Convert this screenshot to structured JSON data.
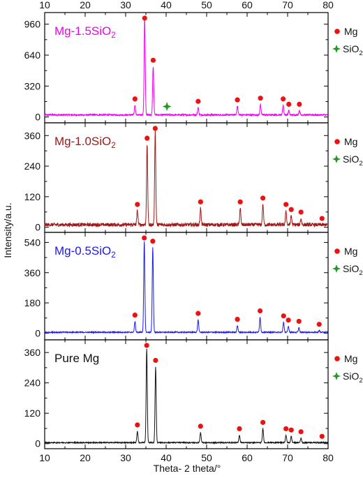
{
  "chart_data": {
    "type": "line",
    "xlabel": "Theta- 2 theta/°",
    "ylabel": "Intensity/a.u.",
    "xlim": [
      10,
      80
    ],
    "x_ticks": [
      "10",
      "20",
      "30",
      "40",
      "50",
      "60",
      "70",
      "80"
    ],
    "grid": false,
    "legend_position": "right of each panel",
    "legend_entries": [
      {
        "label": "Mg",
        "marker": "red-dot",
        "color": "#ee1111"
      },
      {
        "label": "SiO₂",
        "marker": "green-star",
        "color": "#1e9a1e"
      }
    ],
    "panels": [
      {
        "label": "Mg-1.5SiO₂",
        "color": "#ee00ee",
        "ylim": [
          -60,
          1080
        ],
        "y_ticks": [
          0,
          320,
          640,
          960
        ],
        "noise": 8,
        "base": 22,
        "peaks": [
          [
            32.3,
            100
          ],
          [
            34.7,
            1000
          ],
          [
            36.8,
            500
          ],
          [
            47.9,
            75
          ],
          [
            57.6,
            90
          ],
          [
            63.3,
            108
          ],
          [
            68.9,
            100
          ],
          [
            70.3,
            45
          ],
          [
            72.9,
            45
          ]
        ],
        "mg_markers": [
          32.3,
          34.7,
          36.8,
          47.9,
          57.6,
          63.3,
          68.9,
          70.3,
          72.9
        ],
        "sio2_markers": [
          40.2
        ]
      },
      {
        "label": "Mg-1.0SiO₂",
        "color": "#a01818",
        "ylim": [
          -20,
          410
        ],
        "y_ticks": [
          0,
          120,
          240,
          360
        ],
        "noise": 7,
        "base": 10,
        "peaks": [
          [
            32.9,
            55
          ],
          [
            35.3,
            315
          ],
          [
            37.3,
            370
          ],
          [
            48.5,
            65
          ],
          [
            58.3,
            65
          ],
          [
            63.9,
            80
          ],
          [
            69.6,
            55
          ],
          [
            70.9,
            35
          ],
          [
            73.3,
            25
          ]
        ],
        "mg_markers": [
          32.9,
          35.3,
          37.3,
          48.5,
          58.3,
          63.9,
          69.6,
          70.9,
          73.3,
          78.5
        ],
        "sio2_markers": []
      },
      {
        "label": "Mg-0.5SiO₂",
        "color": "#1a1aee",
        "ylim": [
          -40,
          600
        ],
        "y_ticks": [
          0,
          180,
          360,
          540
        ],
        "noise": 3,
        "base": 5,
        "peaks": [
          [
            32.3,
            65
          ],
          [
            34.6,
            540
          ],
          [
            36.7,
            505
          ],
          [
            47.9,
            75
          ],
          [
            57.6,
            40
          ],
          [
            63.2,
            90
          ],
          [
            69.0,
            60
          ],
          [
            70.2,
            35
          ],
          [
            72.8,
            28
          ],
          [
            77.8,
            10
          ]
        ],
        "mg_markers": [
          32.3,
          34.6,
          36.7,
          47.9,
          57.6,
          63.2,
          69.0,
          70.2,
          72.8,
          77.8
        ],
        "sio2_markers": []
      },
      {
        "label": "Pure Mg",
        "color": "#111111",
        "ylim": [
          -20,
          410
        ],
        "y_ticks": [
          0,
          120,
          240,
          360
        ],
        "noise": 2,
        "base": 4,
        "peaks": [
          [
            32.9,
            45
          ],
          [
            35.2,
            370
          ],
          [
            37.4,
            300
          ],
          [
            48.5,
            40
          ],
          [
            58.1,
            30
          ],
          [
            63.9,
            55
          ],
          [
            69.6,
            30
          ],
          [
            70.9,
            25
          ],
          [
            73.3,
            18
          ]
        ],
        "mg_markers": [
          32.9,
          35.2,
          37.4,
          48.5,
          58.1,
          63.9,
          69.6,
          70.9,
          73.3,
          78.5
        ],
        "sio2_markers": []
      }
    ]
  }
}
